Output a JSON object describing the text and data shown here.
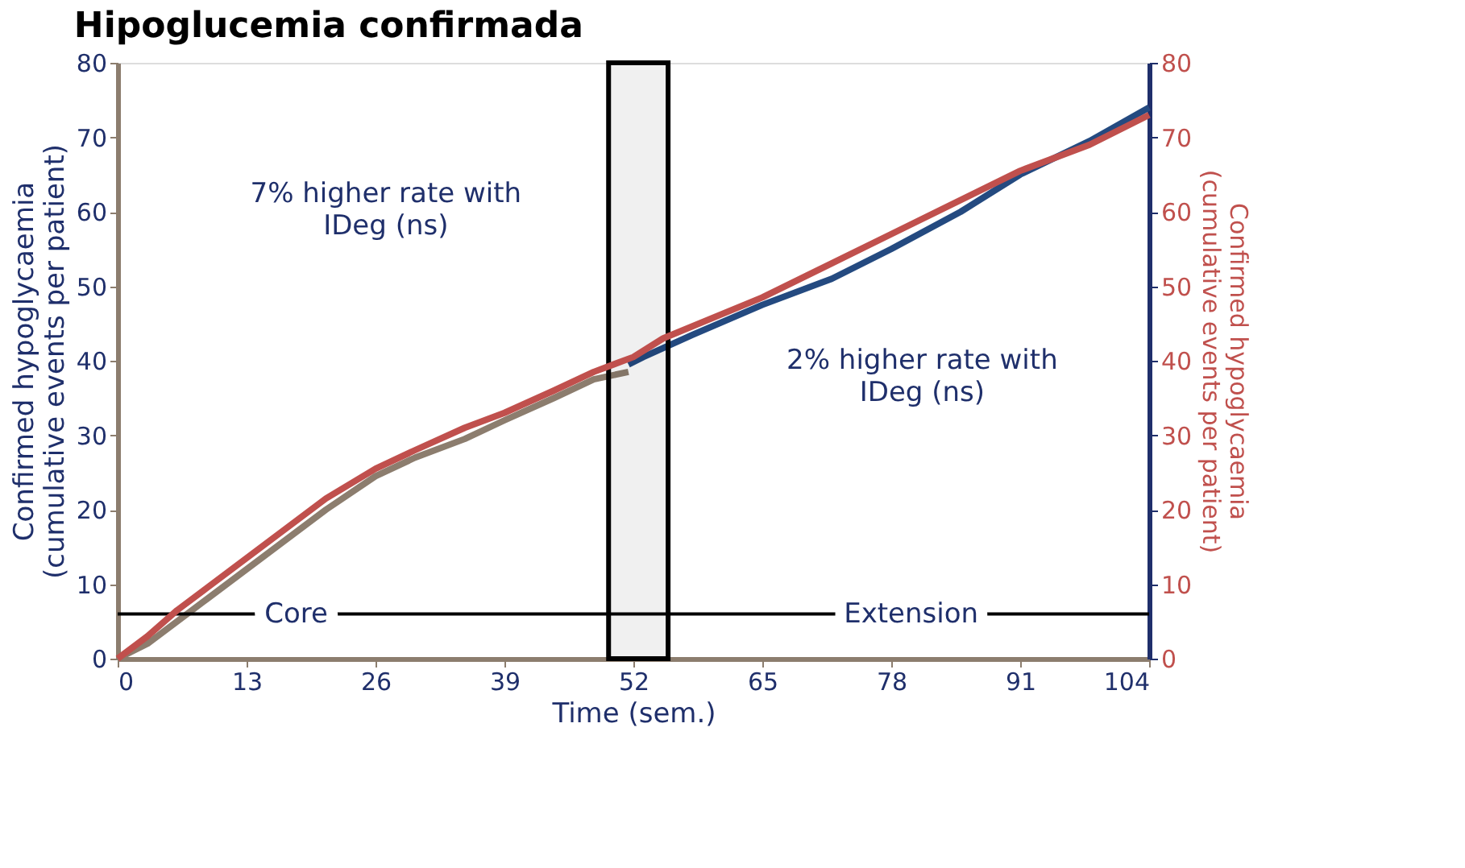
{
  "chart_data": {
    "type": "line",
    "title": "Hipoglucemia confirmada",
    "xlabel": "Time (sem.)",
    "ylabel": "Confirmed hypoglycaemia\n(cumulative events per patient)",
    "y2label": "Confirmed hypoglycaemia\n(cumulative events per patient)",
    "xlim": [
      0,
      104
    ],
    "xticks": [
      0,
      13,
      26,
      39,
      52,
      65,
      78,
      91,
      104
    ],
    "ylim": [
      0,
      80
    ],
    "yticks": [
      0,
      10,
      20,
      30,
      40,
      50,
      60,
      70,
      80
    ],
    "y2lim": [
      0,
      80
    ],
    "y2ticks": [
      0,
      10,
      20,
      30,
      40,
      50,
      60,
      70,
      80
    ],
    "grid": false,
    "legend": false,
    "marker": "none",
    "line_style": "solid",
    "series": [
      {
        "color": "#8c7d6e",
        "x": [
          0,
          3,
          6,
          9,
          13,
          17,
          21,
          26,
          30,
          35,
          39,
          44,
          48,
          51.5
        ],
        "values": [
          0,
          2,
          5,
          8,
          12,
          16,
          20,
          24.5,
          27,
          29.5,
          32,
          35,
          37.5,
          38.5
        ]
      },
      {
        "color": "#244a80",
        "x": [
          51.5,
          53,
          58,
          65,
          72,
          78,
          85,
          91,
          98,
          104
        ],
        "values": [
          39.5,
          40.5,
          43.5,
          47.5,
          51,
          55,
          60,
          65,
          69.5,
          74
        ]
      },
      {
        "color": "#c0504d",
        "axis": "y2",
        "x": [
          0,
          3,
          6,
          9,
          13,
          17,
          21,
          26,
          30,
          35,
          39,
          44,
          48,
          52,
          55,
          65,
          78,
          91,
          98,
          104
        ],
        "values": [
          0,
          3,
          6.5,
          9.5,
          13.5,
          17.5,
          21.5,
          25.5,
          28,
          31,
          33,
          36,
          38.5,
          40.5,
          43,
          48.5,
          57,
          65.5,
          69,
          73
        ]
      }
    ],
    "ref_lines": [
      {
        "axis": "y",
        "value": 6,
        "label": null,
        "color": "#000000"
      }
    ],
    "bands": [
      {
        "axis": "x",
        "from": 49.5,
        "to": 55.5,
        "label": null,
        "color": "#000000"
      }
    ],
    "annotations": [
      "7% higher rate with\nIDeg (ns)",
      "2% higher rate with\nIDeg (ns)",
      {
        "text": "Core",
        "x": 18,
        "y": 6
      },
      {
        "text": "Extension",
        "x": 80,
        "y": 6
      }
    ]
  }
}
